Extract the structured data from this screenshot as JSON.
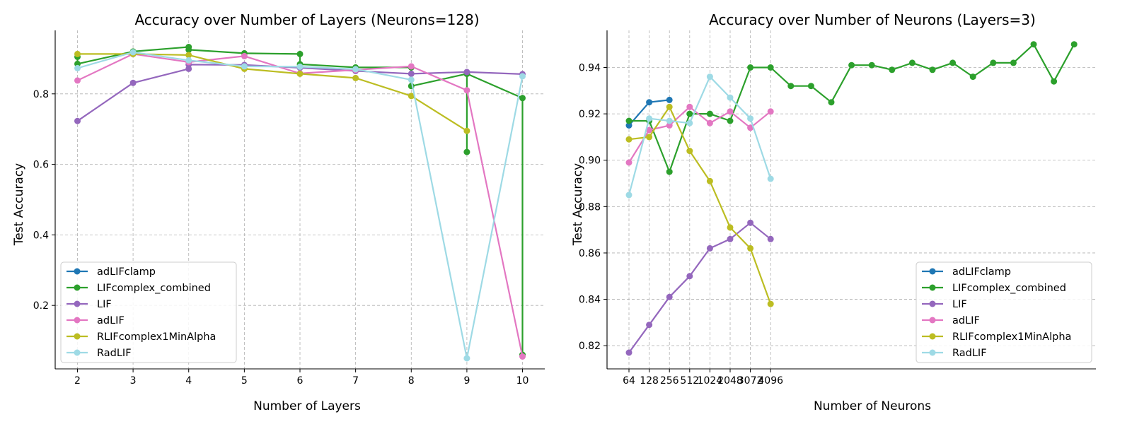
{
  "figure": {
    "colors": {
      "adLIFclamp": "#1f77b4",
      "LIFcomplex_combined": "#2ca02c",
      "LIF": "#9467bd",
      "adLIF": "#e377c2",
      "RLIFcomplex1MinAlpha": "#bcbd22",
      "RadLIF": "#9edae5"
    }
  },
  "chart_data": [
    {
      "type": "line",
      "title": "Accuracy over Number of Layers (Neurons=128)",
      "xlabel": "Number of Layers",
      "ylabel": "Test Accuracy",
      "xlim": [
        1.6,
        10.4
      ],
      "ylim": [
        0.02,
        0.98
      ],
      "x_ticks": [
        2,
        3,
        4,
        5,
        6,
        7,
        8,
        9,
        10
      ],
      "y_ticks": [
        0.2,
        0.4,
        0.6,
        0.8
      ],
      "grid": true,
      "legend_position": "lower-left",
      "series": [
        {
          "name": "adLIFclamp",
          "points": []
        },
        {
          "name": "LIFcomplex_combined",
          "points": [
            [
              2,
              0.905
            ],
            [
              2,
              0.885
            ],
            [
              3,
              0.92
            ],
            [
              4,
              0.933
            ],
            [
              4,
              0.925
            ],
            [
              5,
              0.915
            ],
            [
              6,
              0.913
            ],
            [
              6,
              0.884
            ],
            [
              7,
              0.875
            ],
            [
              8,
              0.875
            ],
            [
              8,
              0.822
            ],
            [
              9,
              0.857
            ],
            [
              9,
              0.635
            ],
            [
              9,
              0.857
            ],
            [
              10,
              0.788
            ],
            [
              10,
              0.06
            ]
          ]
        },
        {
          "name": "LIF",
          "points": [
            [
              2,
              0.723
            ],
            [
              3,
              0.831
            ],
            [
              4,
              0.871
            ],
            [
              4,
              0.883
            ],
            [
              5,
              0.882
            ],
            [
              6,
              0.874
            ],
            [
              7,
              0.865
            ],
            [
              8,
              0.857
            ],
            [
              9,
              0.862
            ],
            [
              10,
              0.856
            ]
          ]
        },
        {
          "name": "adLIF",
          "points": [
            [
              2,
              0.838
            ],
            [
              3,
              0.913
            ],
            [
              4,
              0.89
            ],
            [
              5,
              0.907
            ],
            [
              6,
              0.858
            ],
            [
              7,
              0.868
            ],
            [
              8,
              0.878
            ],
            [
              9,
              0.81
            ],
            [
              10,
              0.055
            ]
          ]
        },
        {
          "name": "RLIFcomplex1MinAlpha",
          "points": [
            [
              2,
              0.913
            ],
            [
              3,
              0.913
            ],
            [
              4,
              0.91
            ],
            [
              5,
              0.871
            ],
            [
              6,
              0.857
            ],
            [
              7,
              0.845
            ],
            [
              8,
              0.794
            ],
            [
              9,
              0.695
            ]
          ]
        },
        {
          "name": "RadLIF",
          "points": [
            [
              2,
              0.873
            ],
            [
              3,
              0.918
            ],
            [
              4,
              0.895
            ],
            [
              5,
              0.878
            ],
            [
              6,
              0.877
            ],
            [
              7,
              0.87
            ],
            [
              8,
              0.84
            ],
            [
              9,
              0.05
            ],
            [
              10,
              0.85
            ]
          ]
        }
      ]
    },
    {
      "type": "line",
      "title": "Accuracy over Number of Neurons (Layers=3)",
      "xlabel": "Number of Neurons",
      "ylabel": "Test Accuracy",
      "xlim": [
        0,
        23
      ],
      "ylim": [
        0.81,
        0.956
      ],
      "x_ticks": [
        {
          "pos": 1,
          "label": "64"
        },
        {
          "pos": 2,
          "label": "128"
        },
        {
          "pos": 3,
          "label": "256"
        },
        {
          "pos": 4,
          "label": "512"
        },
        {
          "pos": 5,
          "label": "1024"
        },
        {
          "pos": 6,
          "label": "2048"
        },
        {
          "pos": 7,
          "label": "3072"
        },
        {
          "pos": 8,
          "label": "4096"
        }
      ],
      "y_ticks": [
        0.82,
        0.84,
        0.86,
        0.88,
        0.9,
        0.92,
        0.94
      ],
      "grid": true,
      "legend_position": "lower-right",
      "series": [
        {
          "name": "adLIFclamp",
          "points": [
            [
              1,
              0.915
            ],
            [
              2,
              0.925
            ],
            [
              3,
              0.926
            ]
          ]
        },
        {
          "name": "LIFcomplex_combined",
          "points": [
            [
              1,
              0.917
            ],
            [
              2,
              0.917
            ],
            [
              3,
              0.895
            ],
            [
              4,
              0.92
            ],
            [
              5,
              0.92
            ],
            [
              6,
              0.917
            ],
            [
              7,
              0.94
            ],
            [
              8,
              0.94
            ],
            [
              9,
              0.932
            ],
            [
              10,
              0.932
            ],
            [
              11,
              0.925
            ],
            [
              12,
              0.941
            ],
            [
              13,
              0.941
            ],
            [
              14,
              0.939
            ],
            [
              15,
              0.942
            ],
            [
              16,
              0.939
            ],
            [
              17,
              0.942
            ],
            [
              18,
              0.936
            ],
            [
              19,
              0.942
            ],
            [
              20,
              0.942
            ],
            [
              21,
              0.95
            ],
            [
              22,
              0.934
            ],
            [
              23,
              0.95
            ]
          ]
        },
        {
          "name": "LIF",
          "points": [
            [
              1,
              0.817
            ],
            [
              2,
              0.829
            ],
            [
              3,
              0.841
            ],
            [
              4,
              0.85
            ],
            [
              5,
              0.862
            ],
            [
              6,
              0.866
            ],
            [
              7,
              0.873
            ],
            [
              8,
              0.866
            ]
          ]
        },
        {
          "name": "adLIF",
          "points": [
            [
              1,
              0.899
            ],
            [
              2,
              0.913
            ],
            [
              3,
              0.915
            ],
            [
              4,
              0.923
            ],
            [
              5,
              0.916
            ],
            [
              6,
              0.921
            ],
            [
              7,
              0.914
            ],
            [
              8,
              0.921
            ]
          ]
        },
        {
          "name": "RLIFcomplex1MinAlpha",
          "points": [
            [
              1,
              0.909
            ],
            [
              2,
              0.91
            ],
            [
              3,
              0.923
            ],
            [
              4,
              0.904
            ],
            [
              5,
              0.891
            ],
            [
              6,
              0.871
            ],
            [
              7,
              0.862
            ],
            [
              8,
              0.838
            ]
          ]
        },
        {
          "name": "RadLIF",
          "points": [
            [
              1,
              0.885
            ],
            [
              2,
              0.918
            ],
            [
              3,
              0.917
            ],
            [
              4,
              0.916
            ],
            [
              5,
              0.936
            ],
            [
              6,
              0.927
            ],
            [
              7,
              0.918
            ],
            [
              8,
              0.892
            ]
          ]
        }
      ]
    }
  ]
}
